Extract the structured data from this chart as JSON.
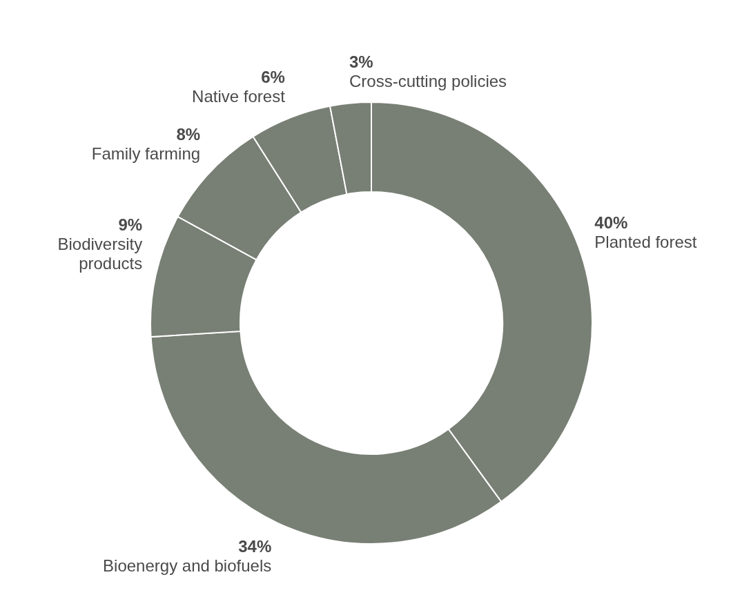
{
  "chart_data": {
    "type": "donut",
    "categories": [
      "Planted forest",
      "Bioenergy and biofuels",
      "Biodiversity products",
      "Family farming",
      "Native forest",
      "Cross-cutting policies"
    ],
    "values": [
      40,
      34,
      9,
      8,
      6,
      3
    ],
    "value_labels": [
      "40%",
      "34%",
      "9%",
      "8%",
      "6%",
      "3%"
    ],
    "colors": [
      "#787f74",
      "#787f74",
      "#787f74",
      "#787f74",
      "#787f74",
      "#787f74"
    ]
  }
}
